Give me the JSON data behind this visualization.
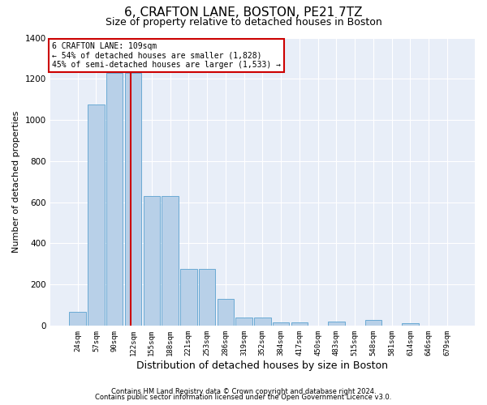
{
  "title": "6, CRAFTON LANE, BOSTON, PE21 7TZ",
  "subtitle": "Size of property relative to detached houses in Boston",
  "xlabel": "Distribution of detached houses by size in Boston",
  "ylabel": "Number of detached properties",
  "footnote1": "Contains HM Land Registry data © Crown copyright and database right 2024.",
  "footnote2": "Contains public sector information licensed under the Open Government Licence v3.0.",
  "categories": [
    "24sqm",
    "57sqm",
    "90sqm",
    "122sqm",
    "155sqm",
    "188sqm",
    "221sqm",
    "253sqm",
    "286sqm",
    "319sqm",
    "352sqm",
    "384sqm",
    "417sqm",
    "450sqm",
    "483sqm",
    "515sqm",
    "548sqm",
    "581sqm",
    "614sqm",
    "646sqm",
    "679sqm"
  ],
  "values": [
    65,
    1075,
    1230,
    1230,
    630,
    630,
    275,
    275,
    130,
    40,
    40,
    15,
    15,
    0,
    20,
    0,
    25,
    0,
    10,
    0,
    0
  ],
  "bar_color": "#b8d0e8",
  "bar_edge_color": "#6aaad4",
  "annotation_line1": "6 CRAFTON LANE: 109sqm",
  "annotation_line2": "← 54% of detached houses are smaller (1,828)",
  "annotation_line3": "45% of semi-detached houses are larger (1,533) →",
  "annotation_box_color": "#ffffff",
  "annotation_box_edge": "#cc0000",
  "vline_color": "#cc0000",
  "vline_x": 2.85,
  "ylim": [
    0,
    1400
  ],
  "yticks": [
    0,
    200,
    400,
    600,
    800,
    1000,
    1200,
    1400
  ],
  "background_color": "#e8eef8",
  "title_fontsize": 11,
  "subtitle_fontsize": 9,
  "xlabel_fontsize": 9,
  "ylabel_fontsize": 8
}
